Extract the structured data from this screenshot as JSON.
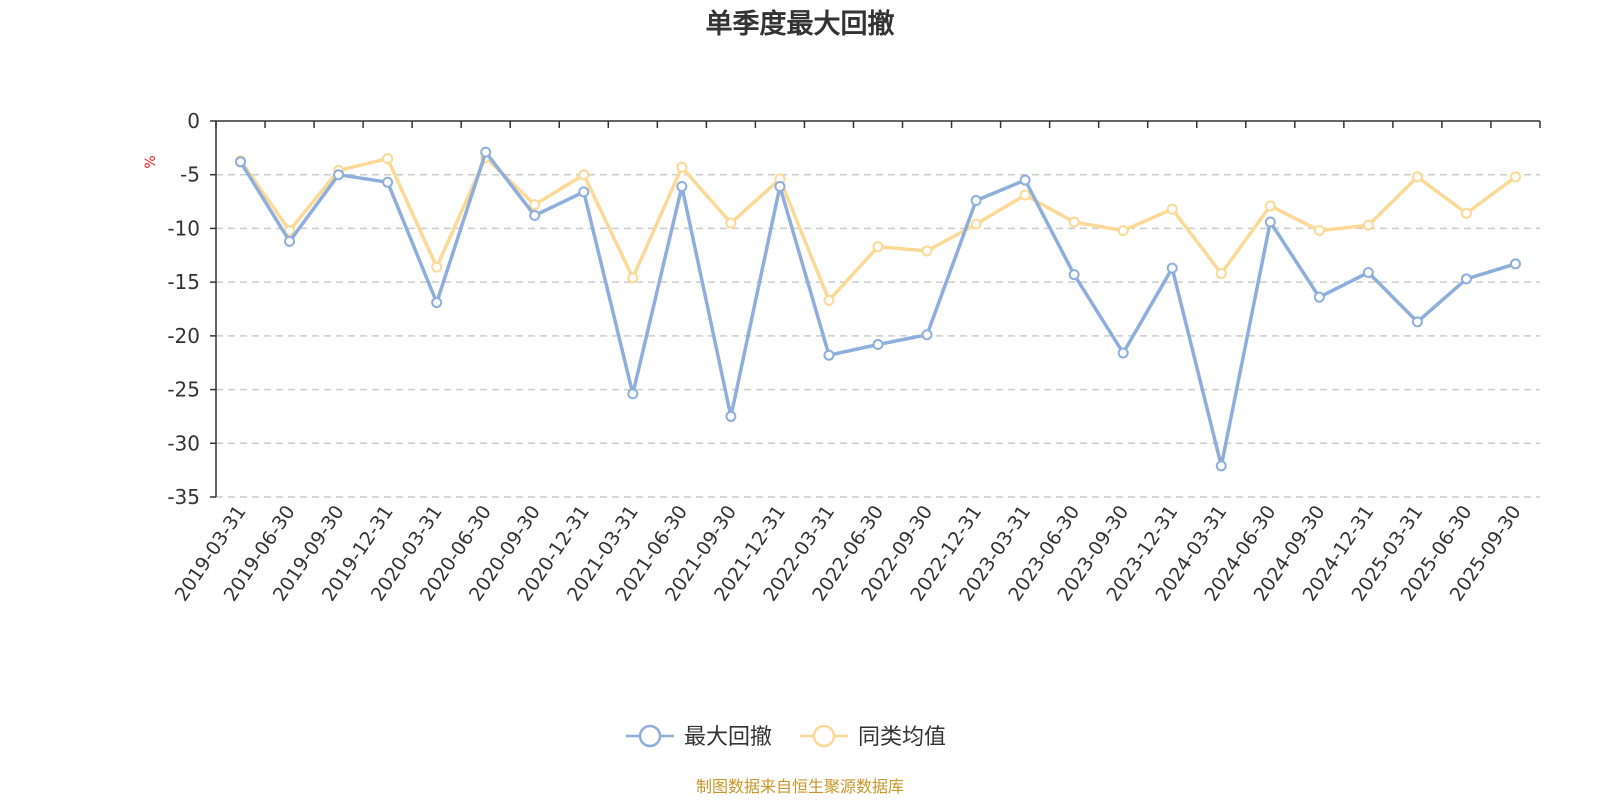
{
  "chart_data": {
    "type": "line",
    "title": "单季度最大回撤",
    "ylabel": "%",
    "ylim": [
      -35,
      0
    ],
    "yticks": [
      0,
      -5,
      -10,
      -15,
      -20,
      -25,
      -30,
      -35
    ],
    "grid": "horizontal-dashed",
    "legend_position": "bottom-center",
    "categories": [
      "2019-03-31",
      "2019-06-30",
      "2019-09-30",
      "2019-12-31",
      "2020-03-31",
      "2020-06-30",
      "2020-09-30",
      "2020-12-31",
      "2021-03-31",
      "2021-06-30",
      "2021-09-30",
      "2021-12-31",
      "2022-03-31",
      "2022-06-30",
      "2022-09-30",
      "2022-12-31",
      "2023-03-31",
      "2023-06-30",
      "2023-09-30",
      "2023-12-31",
      "2024-03-31",
      "2024-06-30",
      "2024-09-30",
      "2024-12-31",
      "2025-03-31",
      "2025-06-30",
      "2025-09-30"
    ],
    "series": [
      {
        "name": "最大回撤",
        "color": "#8eaedc",
        "values": [
          -3.8,
          -11.2,
          -5.0,
          -5.7,
          -16.9,
          -2.9,
          -8.8,
          -6.6,
          -25.4,
          -6.1,
          -27.5,
          -6.1,
          -21.8,
          -20.8,
          -19.9,
          -7.4,
          -5.5,
          -14.3,
          -21.6,
          -13.7,
          -32.1,
          -9.4,
          -16.4,
          -14.1,
          -18.7,
          -14.7,
          -13.3
        ]
      },
      {
        "name": "同类均值",
        "color": "#fcd997",
        "values": [
          -3.7,
          -10.2,
          -4.6,
          -3.5,
          -13.6,
          -3.4,
          -7.8,
          -5.0,
          -14.6,
          -4.3,
          -9.5,
          -5.4,
          -16.7,
          -11.7,
          -12.1,
          -9.6,
          -6.9,
          -9.4,
          -10.2,
          -8.2,
          -14.2,
          -7.9,
          -10.2,
          -9.7,
          -5.2,
          -8.6,
          -5.2
        ]
      }
    ]
  },
  "footer": {
    "source": "制图数据来自恒生聚源数据库"
  }
}
